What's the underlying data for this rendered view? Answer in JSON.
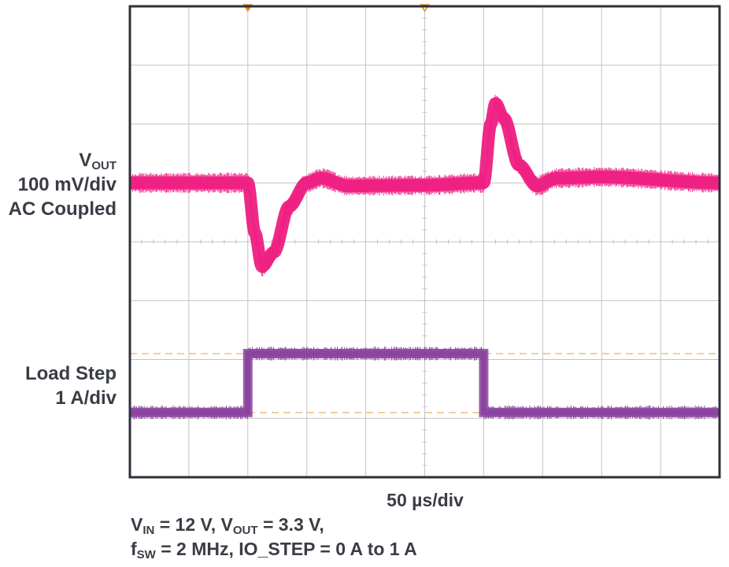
{
  "chart_data": {
    "type": "line",
    "title": "",
    "xlabel": "50 µs/div",
    "x_unit": "µs",
    "x_per_div": 50,
    "x_range": [
      0,
      500
    ],
    "divisions": {
      "x": 10,
      "y": 8
    },
    "grid": true,
    "channels": [
      {
        "name_main": "V",
        "name_sub": "OUT",
        "scale": "100 mV/div",
        "coupling": "AC Coupled",
        "color": "#ee1e82",
        "unit": "mV",
        "y_per_div": 100,
        "baseline_div": 5,
        "keypoints": [
          {
            "x": 0,
            "y": 0
          },
          {
            "x": 100,
            "y": 0
          },
          {
            "x": 106,
            "y": -85
          },
          {
            "x": 112,
            "y": -142
          },
          {
            "x": 122,
            "y": -118
          },
          {
            "x": 135,
            "y": -40
          },
          {
            "x": 150,
            "y": 0
          },
          {
            "x": 162,
            "y": 8
          },
          {
            "x": 185,
            "y": -5
          },
          {
            "x": 250,
            "y": -4
          },
          {
            "x": 299,
            "y": 0
          },
          {
            "x": 300,
            "y": 0
          },
          {
            "x": 306,
            "y": 100
          },
          {
            "x": 310,
            "y": 135
          },
          {
            "x": 317,
            "y": 110
          },
          {
            "x": 330,
            "y": 30
          },
          {
            "x": 345,
            "y": -5
          },
          {
            "x": 362,
            "y": 8
          },
          {
            "x": 400,
            "y": 10
          },
          {
            "x": 500,
            "y": 0
          }
        ]
      },
      {
        "name": "Load Step",
        "scale": "1 A/div",
        "color": "#8b44a0",
        "unit": "A",
        "y_per_div": 1,
        "baseline_div": 1.1,
        "low_value": 0,
        "high_value": 1,
        "rise_x": 100,
        "fall_x": 300
      }
    ],
    "cursor_levels_A": [
      0,
      1
    ],
    "trigger_markers_x": [
      100,
      250
    ]
  },
  "conditions": {
    "line1": {
      "vin_main": "V",
      "vin_sub": "IN",
      "vin_val": " = 12 V, ",
      "vout_main": "V",
      "vout_sub": "OUT",
      "vout_val": " = 3.3 V,"
    },
    "line2": {
      "fsw_main": "f",
      "fsw_sub": "SW",
      "fsw_val": " = 2 MHz, IO_STEP = 0 A to 1 A"
    }
  },
  "colors": {
    "frame": "#2e3138",
    "grid": "#c3c3c3",
    "cursor": "#f2c18a",
    "trigger": "#e08a2e"
  }
}
